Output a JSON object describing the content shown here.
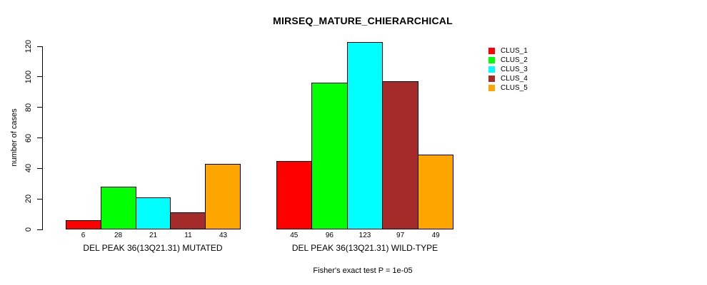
{
  "chart": {
    "title": "MIRSEQ_MATURE_CHIERARCHICAL",
    "y_axis_label": "number of cases",
    "footer_note": "Fisher's exact test P = 1e-05"
  },
  "chart_data": {
    "type": "bar",
    "title": "MIRSEQ_MATURE_CHIERARCHICAL",
    "xlabel": "",
    "ylabel": "number of cases",
    "ylim": [
      0,
      120
    ],
    "yticks": [
      0,
      20,
      40,
      60,
      80,
      100,
      120
    ],
    "grid": false,
    "legend_position": "right",
    "bar_value_labels_shown": true,
    "categories": [
      "DEL PEAK 36(13Q21.31) MUTATED",
      "DEL PEAK 36(13Q21.31) WILD-TYPE"
    ],
    "series": [
      {
        "name": "CLUS_1",
        "color": "#FF0000",
        "values": [
          6,
          45
        ]
      },
      {
        "name": "CLUS_2",
        "color": "#00FF00",
        "values": [
          28,
          96
        ]
      },
      {
        "name": "CLUS_3",
        "color": "#00FFFF",
        "values": [
          21,
          123
        ]
      },
      {
        "name": "CLUS_4",
        "color": "#A52A2A",
        "values": [
          11,
          97
        ]
      },
      {
        "name": "CLUS_5",
        "color": "#FFA500",
        "values": [
          43,
          49
        ]
      }
    ],
    "annotation": "Fisher's exact test P = 1e-05"
  }
}
